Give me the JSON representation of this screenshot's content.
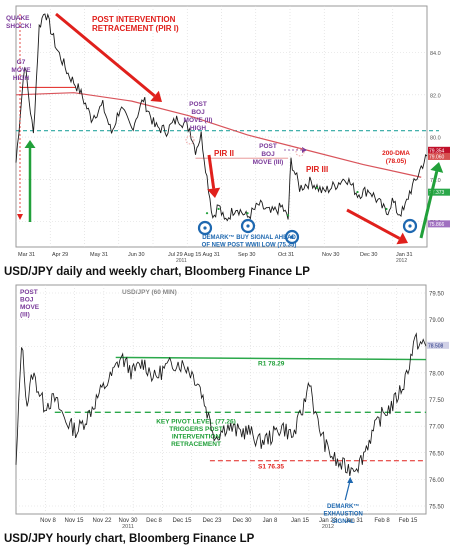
{
  "colors": {
    "price": "#1a1a1a",
    "ma": "#d9545b",
    "pivot": "#2aa6a0",
    "pivot2": "#2aa84a",
    "green": "#21a03a",
    "red": "#e0201c",
    "purple": "#7a3a9a",
    "blue": "#1e68b0",
    "bg": "#ffffff"
  },
  "captions": {
    "top": "USD/JPY daily and weekly chart, Bloomberg Finance LP",
    "bottom": "USD/JPY hourly chart, Bloomberg Finance LP"
  },
  "chart_data": [
    {
      "type": "line",
      "title": "",
      "ylim": [
        74.8,
        86.2
      ],
      "yticks": [
        84.0,
        82.0,
        80.0,
        78.0,
        76.0
      ],
      "x_labels": [
        "Mar 31",
        "Apr 29",
        "May 31",
        "Jun 30",
        "Jul 29 Aug 15 Aug 31",
        "Sep 30",
        "Oct 31",
        "Nov 30",
        "Dec 30",
        "Jan 31",
        "2011",
        "2012"
      ],
      "series": [
        {
          "kind": "price",
          "points": [
            [
              0,
              78.8
            ],
            [
              3,
              83.5
            ],
            [
              6,
              80.1
            ],
            [
              8,
              85.2
            ],
            [
              10,
              86.0
            ],
            [
              14,
              84.2
            ],
            [
              18,
              83.0
            ],
            [
              22,
              82.2
            ],
            [
              26,
              80.9
            ],
            [
              30,
              81.5
            ],
            [
              33,
              80.2
            ],
            [
              36,
              81.4
            ],
            [
              40,
              80.4
            ],
            [
              44,
              81.8
            ],
            [
              48,
              80.5
            ],
            [
              52,
              80.3
            ],
            [
              56,
              80.9
            ],
            [
              60,
              80.4
            ],
            [
              62,
              79.4
            ],
            [
              64,
              80.1
            ],
            [
              66,
              78.1
            ],
            [
              68,
              76.2
            ],
            [
              70,
              76.8
            ],
            [
              72,
              76.0
            ],
            [
              76,
              76.7
            ],
            [
              80,
              76.2
            ],
            [
              84,
              76.8
            ],
            [
              88,
              76.4
            ],
            [
              92,
              76.7
            ],
            [
              94,
              76.1
            ],
            [
              95,
              78.9
            ],
            [
              98,
              77.6
            ],
            [
              102,
              77.9
            ],
            [
              106,
              77.4
            ],
            [
              110,
              77.7
            ],
            [
              114,
              78.1
            ],
            [
              118,
              77.3
            ],
            [
              122,
              77.5
            ],
            [
              126,
              76.8
            ],
            [
              128,
              76.4
            ],
            [
              130,
              77.0
            ],
            [
              132,
              76.4
            ],
            [
              134,
              76.5
            ],
            [
              136,
              77.4
            ],
            [
              138,
              77.9
            ],
            [
              140,
              78.6
            ],
            [
              142,
              79.1
            ]
          ]
        },
        {
          "kind": "200-DMA",
          "points": [
            [
              0,
              82.0
            ],
            [
              20,
              82.1
            ],
            [
              40,
              81.7
            ],
            [
              60,
              81.0
            ],
            [
              80,
              80.1
            ],
            [
              100,
              79.4
            ],
            [
              120,
              78.7
            ],
            [
              140,
              78.1
            ]
          ]
        }
      ],
      "pivot_level": 80.3,
      "right_labels": [
        "79.354",
        "79.060",
        "77.373",
        "75.866"
      ],
      "annotations": [
        "QUAKE SHOCK!",
        "G7 MOVE HIGH",
        "POST INTERVENTION RETRACEMENT (PIR I)",
        "POST BOJ MOVE (II) HIGH",
        "PIR II",
        "POST BOJ MOVE (III)",
        "PIR III",
        "200-DMA (78.05)",
        "DEMARK™ BUY SIGNAL AHEAD OF NEW POST WWII LOW (75.35)"
      ]
    },
    {
      "type": "line",
      "title": "USD/JPY (60 MIN)",
      "ylim": [
        75.35,
        79.65
      ],
      "yticks": [
        79.5,
        79.0,
        78.5,
        78.0,
        77.5,
        77.0,
        76.5,
        76.0,
        75.5
      ],
      "x_labels": [
        "Nov 8",
        "Nov 15",
        "Nov 22",
        "Nov 30",
        "Dec 8",
        "Dec 15",
        "Dec 23",
        "Dec 30",
        "Jan 8",
        "Jan 15",
        "Jan 23",
        "Jan 31",
        "Feb 8",
        "Feb 15",
        "2011",
        "2012"
      ],
      "series": [
        {
          "kind": "price",
          "points": [
            [
              0,
              76.2
            ],
            [
              2,
              78.6
            ],
            [
              4,
              77.4
            ],
            [
              6,
              78.0
            ],
            [
              10,
              77.4
            ],
            [
              14,
              77.5
            ],
            [
              18,
              77.1
            ],
            [
              22,
              76.9
            ],
            [
              26,
              77.2
            ],
            [
              30,
              77.6
            ],
            [
              34,
              77.9
            ],
            [
              38,
              78.3
            ],
            [
              42,
              78.0
            ],
            [
              46,
              78.2
            ],
            [
              50,
              77.9
            ],
            [
              54,
              78.1
            ],
            [
              58,
              78.2
            ],
            [
              62,
              78.1
            ],
            [
              66,
              77.8
            ],
            [
              70,
              77.1
            ],
            [
              72,
              76.8
            ],
            [
              76,
              77.0
            ],
            [
              80,
              76.9
            ],
            [
              84,
              76.9
            ],
            [
              88,
              76.7
            ],
            [
              92,
              76.8
            ],
            [
              96,
              77.0
            ],
            [
              100,
              76.8
            ],
            [
              104,
              77.4
            ],
            [
              106,
              77.9
            ],
            [
              108,
              77.2
            ],
            [
              112,
              76.6
            ],
            [
              116,
              76.3
            ],
            [
              120,
              76.2
            ],
            [
              124,
              76.3
            ],
            [
              128,
              76.8
            ],
            [
              132,
              77.2
            ],
            [
              136,
              77.4
            ],
            [
              140,
              77.8
            ],
            [
              144,
              78.6
            ],
            [
              148,
              78.5
            ]
          ]
        }
      ],
      "levels": [
        {
          "label": "R1 78.29",
          "value": 78.29
        },
        {
          "label": "KEY PIVOT LEVEL (77.26) TRIGGERS POST INTERVENTION RETRACEMENT",
          "value": 77.26
        },
        {
          "label": "S1 76.35",
          "value": 76.35
        }
      ],
      "right_label": "78.508",
      "annotations": [
        "POST BOJ MOVE (III)",
        "DEMARK™ EXHAUSTION SIGNAL"
      ]
    }
  ]
}
